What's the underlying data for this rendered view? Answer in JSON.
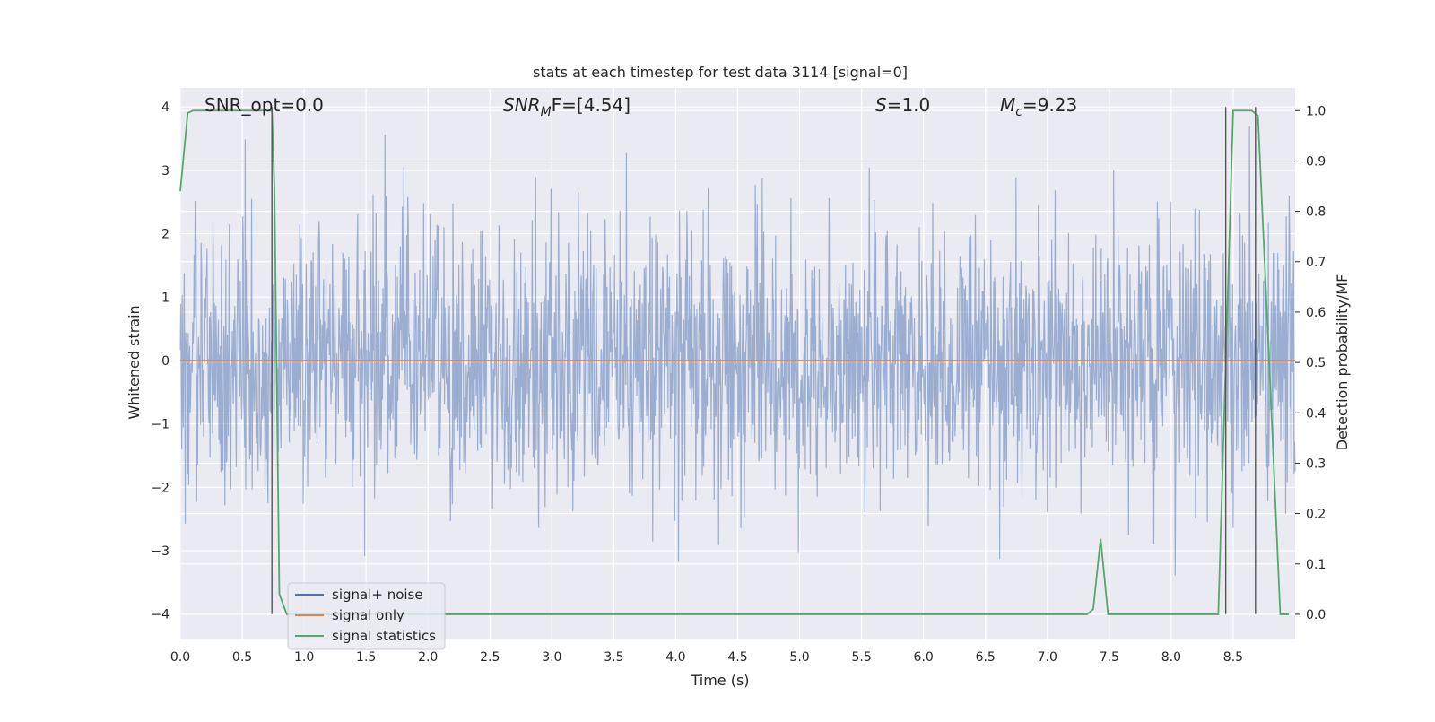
{
  "chart_data": {
    "type": "line",
    "title": "stats at each timestep for test data 3114 [signal=0]",
    "xlabel": "Time (s)",
    "ylabel": "Whitened strain",
    "ylabel_right": "Detection probability/MF",
    "xlim": [
      0.0,
      9.0
    ],
    "ylim": [
      -4.4,
      4.3
    ],
    "ylim_right": [
      -0.05,
      1.045
    ],
    "x_ticks": [
      "0.0",
      "0.5",
      "1.0",
      "1.5",
      "2.0",
      "2.5",
      "3.0",
      "3.5",
      "4.0",
      "4.5",
      "5.0",
      "5.5",
      "6.0",
      "6.5",
      "7.0",
      "7.5",
      "8.0",
      "8.5"
    ],
    "y_ticks_left": [
      "4",
      "3",
      "2",
      "1",
      "0",
      "−1",
      "−2",
      "−3",
      "−4"
    ],
    "y_ticks_right": [
      "1.0",
      "0.9",
      "0.8",
      "0.7",
      "0.6",
      "0.5",
      "0.4",
      "0.3",
      "0.2",
      "0.1",
      "0.0"
    ],
    "grid": true,
    "background_color": "#eaeaf2",
    "annotations": {
      "snr_opt": "SNR_opt=0.0",
      "snr_mf_base": "SNR",
      "snr_mf_sub": "M",
      "snr_mf_rest": "F=[4.54]",
      "s_value": "S",
      "s_rest": "=1.0",
      "mc_base": "M",
      "mc_sub": "c",
      "mc_rest": "=9.23"
    },
    "legend_position": "lower-left",
    "series": [
      {
        "name": "signal+ noise",
        "color": "#4c72b0",
        "axis": "left",
        "description_values": {
          "n_points": 2250,
          "typical_range": [
            -2.6,
            2.7
          ],
          "min": -3.7,
          "max": 3.7
        }
      },
      {
        "name": "signal only",
        "color": "#dd8452",
        "axis": "left",
        "x": [
          0.0,
          9.0
        ],
        "y": [
          0.0,
          0.0
        ]
      },
      {
        "name": "signal statistics",
        "color": "#55a868",
        "axis": "right",
        "x": [
          0.0,
          0.06,
          0.1,
          0.15,
          0.2,
          0.3,
          0.4,
          0.5,
          0.6,
          0.7,
          0.74,
          0.76,
          0.8,
          0.86,
          0.9,
          1.0,
          2.0,
          3.0,
          4.0,
          5.0,
          6.0,
          7.0,
          7.2,
          7.32,
          7.37,
          7.43,
          7.49,
          7.55,
          7.6,
          8.0,
          8.38,
          8.44,
          8.5,
          8.6,
          8.65,
          8.7,
          8.8,
          8.88,
          8.95
        ],
        "y": [
          0.84,
          0.995,
          1.0,
          1.0,
          1.0,
          1.0,
          1.0,
          1.0,
          1.0,
          1.0,
          1.0,
          0.85,
          0.04,
          0.0,
          0.0,
          0.0,
          0.0,
          0.0,
          0.0,
          0.0,
          0.0,
          0.0,
          0.0,
          0.0,
          0.01,
          0.15,
          0.0,
          0.0,
          0.0,
          0.0,
          0.0,
          0.5,
          1.0,
          1.0,
          1.0,
          0.99,
          0.45,
          0.0,
          0.0
        ]
      }
    ],
    "vertical_lines": [
      {
        "x": 0.74,
        "y_from": -4.0,
        "y_to": 4.0,
        "color": "#555555"
      },
      {
        "x": 8.44,
        "y_from": -4.0,
        "y_to": 4.0,
        "color": "#555555"
      },
      {
        "x": 8.68,
        "y_from": -4.0,
        "y_to": 4.0,
        "color": "#555555"
      }
    ]
  }
}
